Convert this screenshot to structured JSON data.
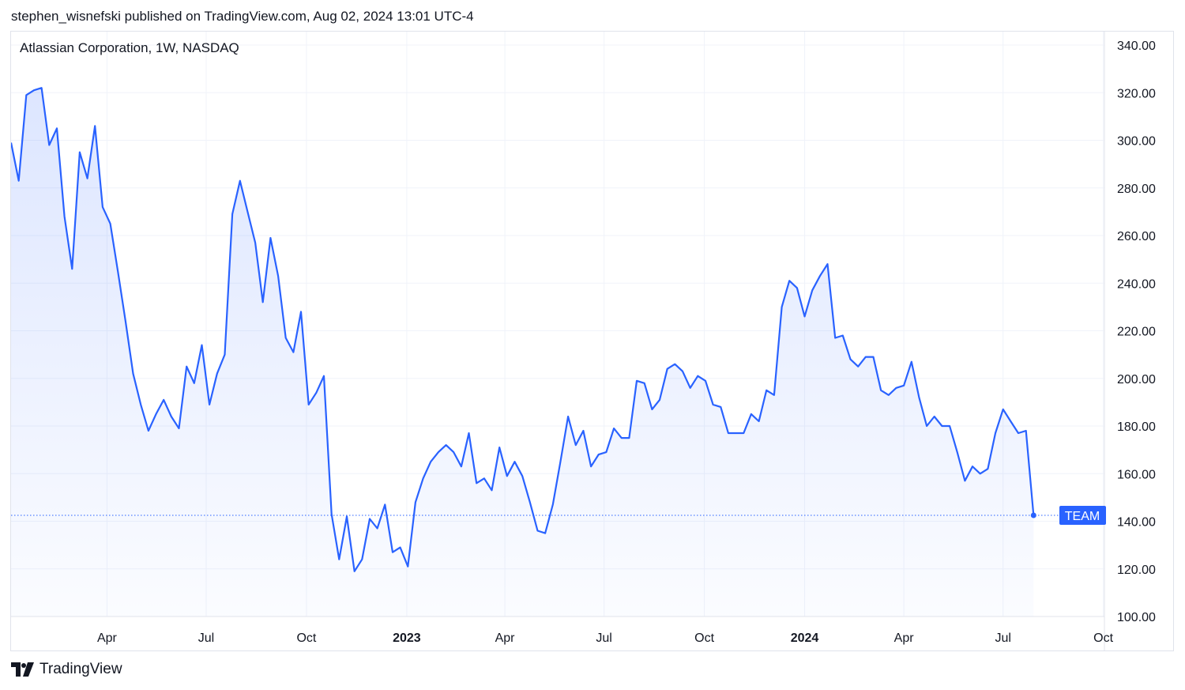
{
  "header": {
    "published_by": "stephen_wisnefski published on TradingView.com, Aug 02, 2024 13:01 UTC-4"
  },
  "footer": {
    "brand": "TradingView",
    "logo_icon": "tradingview-logo-icon"
  },
  "colors": {
    "line": "#2962ff",
    "grid": "#f0f3fa",
    "axis_text": "#131722",
    "badge_bg": "#2962ff",
    "badge_text": "#ffffff"
  },
  "chart_data": {
    "type": "area",
    "title": "Atlassian Corporation, 1W, NASDAQ",
    "symbol_badge": "TEAM",
    "last_value": 142.5,
    "ylim": [
      100,
      340
    ],
    "y_ticks": [
      "100.00",
      "120.00",
      "140.00",
      "160.00",
      "180.00",
      "200.00",
      "220.00",
      "240.00",
      "260.00",
      "280.00",
      "300.00",
      "320.00",
      "340.00"
    ],
    "x_ticks": [
      {
        "label": "Apr",
        "date": "2022-04-01",
        "bold": false
      },
      {
        "label": "Jul",
        "date": "2022-07-01",
        "bold": false
      },
      {
        "label": "Oct",
        "date": "2022-10-01",
        "bold": false
      },
      {
        "label": "2023",
        "date": "2023-01-01",
        "bold": true
      },
      {
        "label": "Apr",
        "date": "2023-04-01",
        "bold": false
      },
      {
        "label": "Jul",
        "date": "2023-07-01",
        "bold": false
      },
      {
        "label": "Oct",
        "date": "2023-10-01",
        "bold": false
      },
      {
        "label": "2024",
        "date": "2024-01-01",
        "bold": true
      },
      {
        "label": "Apr",
        "date": "2024-04-01",
        "bold": false
      },
      {
        "label": "Jul",
        "date": "2024-07-01",
        "bold": false
      },
      {
        "label": "Oct",
        "date": "2024-10-01",
        "bold": false
      }
    ],
    "x_range": [
      "2022-01-03",
      "2024-10-02"
    ],
    "grid": true,
    "series": [
      {
        "values": [
          [
            "2022-01-03",
            299
          ],
          [
            "2022-01-10",
            283
          ],
          [
            "2022-01-17",
            319
          ],
          [
            "2022-01-24",
            321
          ],
          [
            "2022-01-31",
            322
          ],
          [
            "2022-02-07",
            298
          ],
          [
            "2022-02-14",
            305
          ],
          [
            "2022-02-21",
            268
          ],
          [
            "2022-02-28",
            246
          ],
          [
            "2022-03-07",
            295
          ],
          [
            "2022-03-14",
            284
          ],
          [
            "2022-03-21",
            306
          ],
          [
            "2022-03-28",
            272
          ],
          [
            "2022-04-04",
            265
          ],
          [
            "2022-04-11",
            245
          ],
          [
            "2022-04-18",
            224
          ],
          [
            "2022-04-25",
            202
          ],
          [
            "2022-05-02",
            189
          ],
          [
            "2022-05-09",
            178
          ],
          [
            "2022-05-16",
            185
          ],
          [
            "2022-05-23",
            191
          ],
          [
            "2022-05-30",
            184
          ],
          [
            "2022-06-06",
            179
          ],
          [
            "2022-06-13",
            205
          ],
          [
            "2022-06-20",
            198
          ],
          [
            "2022-06-27",
            214
          ],
          [
            "2022-07-04",
            189
          ],
          [
            "2022-07-11",
            202
          ],
          [
            "2022-07-18",
            210
          ],
          [
            "2022-07-25",
            269
          ],
          [
            "2022-08-01",
            283
          ],
          [
            "2022-08-08",
            270
          ],
          [
            "2022-08-15",
            257
          ],
          [
            "2022-08-22",
            232
          ],
          [
            "2022-08-29",
            259
          ],
          [
            "2022-09-05",
            243
          ],
          [
            "2022-09-12",
            217
          ],
          [
            "2022-09-19",
            211
          ],
          [
            "2022-09-26",
            228
          ],
          [
            "2022-10-03",
            189
          ],
          [
            "2022-10-10",
            194
          ],
          [
            "2022-10-17",
            201
          ],
          [
            "2022-10-24",
            143
          ],
          [
            "2022-10-31",
            124
          ],
          [
            "2022-11-07",
            142
          ],
          [
            "2022-11-14",
            119
          ],
          [
            "2022-11-21",
            124
          ],
          [
            "2022-11-28",
            141
          ],
          [
            "2022-12-05",
            137
          ],
          [
            "2022-12-12",
            147
          ],
          [
            "2022-12-19",
            127
          ],
          [
            "2022-12-26",
            129
          ],
          [
            "2023-01-02",
            121
          ],
          [
            "2023-01-09",
            148
          ],
          [
            "2023-01-16",
            158
          ],
          [
            "2023-01-23",
            165
          ],
          [
            "2023-01-30",
            169
          ],
          [
            "2023-02-06",
            172
          ],
          [
            "2023-02-13",
            169
          ],
          [
            "2023-02-20",
            163
          ],
          [
            "2023-02-27",
            177
          ],
          [
            "2023-03-06",
            156
          ],
          [
            "2023-03-13",
            158
          ],
          [
            "2023-03-20",
            153
          ],
          [
            "2023-03-27",
            171
          ],
          [
            "2023-04-03",
            159
          ],
          [
            "2023-04-10",
            165
          ],
          [
            "2023-04-17",
            159
          ],
          [
            "2023-04-24",
            148
          ],
          [
            "2023-05-01",
            136
          ],
          [
            "2023-05-08",
            135
          ],
          [
            "2023-05-15",
            147
          ],
          [
            "2023-05-22",
            165
          ],
          [
            "2023-05-29",
            184
          ],
          [
            "2023-06-05",
            172
          ],
          [
            "2023-06-12",
            178
          ],
          [
            "2023-06-19",
            163
          ],
          [
            "2023-06-26",
            168
          ],
          [
            "2023-07-03",
            169
          ],
          [
            "2023-07-10",
            179
          ],
          [
            "2023-07-17",
            175
          ],
          [
            "2023-07-24",
            175
          ],
          [
            "2023-07-31",
            199
          ],
          [
            "2023-08-07",
            198
          ],
          [
            "2023-08-14",
            187
          ],
          [
            "2023-08-21",
            191
          ],
          [
            "2023-08-28",
            204
          ],
          [
            "2023-09-04",
            206
          ],
          [
            "2023-09-11",
            203
          ],
          [
            "2023-09-18",
            196
          ],
          [
            "2023-09-25",
            201
          ],
          [
            "2023-10-02",
            199
          ],
          [
            "2023-10-09",
            189
          ],
          [
            "2023-10-16",
            188
          ],
          [
            "2023-10-23",
            177
          ],
          [
            "2023-10-30",
            177
          ],
          [
            "2023-11-06",
            177
          ],
          [
            "2023-11-13",
            185
          ],
          [
            "2023-11-20",
            182
          ],
          [
            "2023-11-27",
            195
          ],
          [
            "2023-12-04",
            193
          ],
          [
            "2023-12-11",
            230
          ],
          [
            "2023-12-18",
            241
          ],
          [
            "2023-12-25",
            238
          ],
          [
            "2024-01-01",
            226
          ],
          [
            "2024-01-08",
            237
          ],
          [
            "2024-01-15",
            243
          ],
          [
            "2024-01-22",
            248
          ],
          [
            "2024-01-29",
            217
          ],
          [
            "2024-02-05",
            218
          ],
          [
            "2024-02-12",
            208
          ],
          [
            "2024-02-19",
            205
          ],
          [
            "2024-02-26",
            209
          ],
          [
            "2024-03-04",
            209
          ],
          [
            "2024-03-11",
            195
          ],
          [
            "2024-03-18",
            193
          ],
          [
            "2024-03-25",
            196
          ],
          [
            "2024-04-01",
            197
          ],
          [
            "2024-04-08",
            207
          ],
          [
            "2024-04-15",
            192
          ],
          [
            "2024-04-22",
            180
          ],
          [
            "2024-04-29",
            184
          ],
          [
            "2024-05-06",
            180
          ],
          [
            "2024-05-13",
            180
          ],
          [
            "2024-05-20",
            169
          ],
          [
            "2024-05-27",
            157
          ],
          [
            "2024-06-03",
            163
          ],
          [
            "2024-06-10",
            160
          ],
          [
            "2024-06-17",
            162
          ],
          [
            "2024-06-24",
            177
          ],
          [
            "2024-07-01",
            187
          ],
          [
            "2024-07-08",
            182
          ],
          [
            "2024-07-15",
            177
          ],
          [
            "2024-07-22",
            178
          ],
          [
            "2024-07-29",
            142.5
          ]
        ]
      }
    ]
  }
}
